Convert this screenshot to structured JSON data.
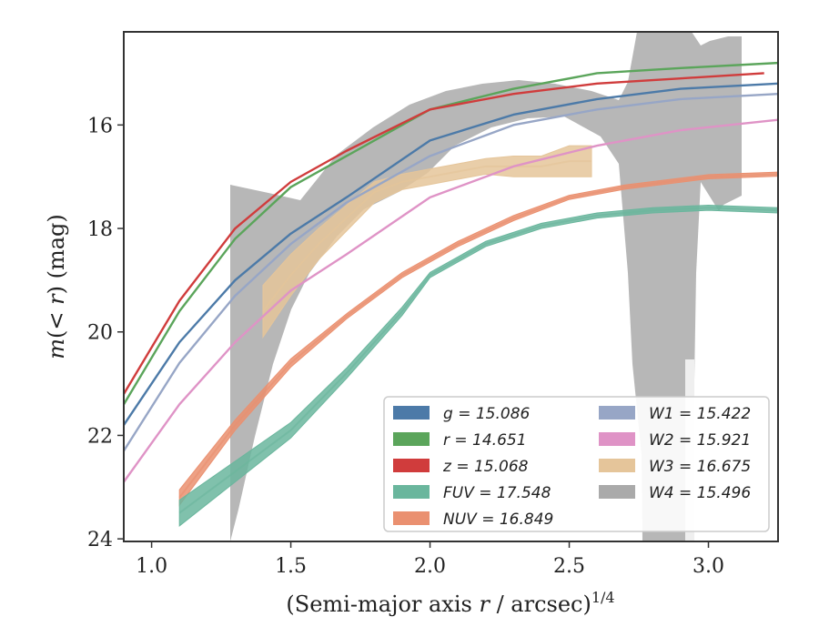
{
  "chart_data": {
    "type": "line",
    "xlabel": "(Semi-major axis r / arcsec)^{1/4}",
    "ylabel": "m(<r) (mag)",
    "xlim": [
      0.9,
      3.25
    ],
    "ylim": [
      24.05,
      14.2
    ],
    "y_inverted": true,
    "x_ticks": [
      "1.0",
      "1.5",
      "2.0",
      "2.5",
      "3.0"
    ],
    "x_tick_values": [
      1.0,
      1.5,
      2.0,
      2.5,
      3.0
    ],
    "y_ticks": [
      "16",
      "18",
      "20",
      "22",
      "24"
    ],
    "y_tick_values": [
      16,
      18,
      20,
      22,
      24
    ],
    "grid": false,
    "legend_position": "lower-right",
    "series": [
      {
        "name": "g = 15.086",
        "legend_label": "g = 15.086",
        "color": "#4c7aa8",
        "style": "line",
        "x": [
          0.9,
          1.1,
          1.3,
          1.5,
          1.7,
          2.0,
          2.3,
          2.6,
          2.9,
          3.25
        ],
        "y": [
          21.8,
          20.2,
          19.0,
          18.1,
          17.4,
          16.3,
          15.8,
          15.5,
          15.3,
          15.2
        ]
      },
      {
        "name": "r = 14.651",
        "legend_label": "r = 14.651",
        "color": "#5ba55b",
        "style": "line",
        "x": [
          0.9,
          1.1,
          1.3,
          1.5,
          1.7,
          2.0,
          2.3,
          2.6,
          2.9,
          3.25
        ],
        "y": [
          21.4,
          19.6,
          18.2,
          17.2,
          16.6,
          15.7,
          15.3,
          15.0,
          14.9,
          14.8
        ]
      },
      {
        "name": "z = 15.068",
        "legend_label": "z = 15.068",
        "color": "#d03c3c",
        "style": "line",
        "x": [
          0.9,
          1.1,
          1.3,
          1.5,
          1.7,
          2.0,
          2.3,
          2.6,
          2.9,
          3.2
        ],
        "y": [
          21.2,
          19.4,
          18.0,
          17.1,
          16.5,
          15.7,
          15.4,
          15.2,
          15.1,
          15.0
        ]
      },
      {
        "name": "FUV = 17.548",
        "legend_label": "FUV = 17.548",
        "color": "#6ab69d",
        "style": "band",
        "x": [
          1.1,
          1.3,
          1.5,
          1.7,
          1.9,
          2.0,
          2.2,
          2.4,
          2.6,
          2.8,
          3.0,
          3.25
        ],
        "y": [
          23.5,
          22.7,
          21.9,
          20.8,
          19.6,
          18.9,
          18.3,
          17.95,
          17.75,
          17.65,
          17.6,
          17.65
        ],
        "y_err": [
          0.25,
          0.2,
          0.15,
          0.1,
          0.08,
          0.05,
          0.05,
          0.05,
          0.05,
          0.05,
          0.05,
          0.05
        ]
      },
      {
        "name": "NUV = 16.849",
        "legend_label": "NUV = 16.849",
        "color": "#ea9070",
        "style": "band",
        "x": [
          1.1,
          1.3,
          1.5,
          1.7,
          1.9,
          2.1,
          2.3,
          2.5,
          2.7,
          3.0,
          3.25
        ],
        "y": [
          23.2,
          21.8,
          20.6,
          19.7,
          18.9,
          18.3,
          17.8,
          17.4,
          17.2,
          17.0,
          16.95
        ],
        "y_err": [
          0.15,
          0.1,
          0.08,
          0.05,
          0.05,
          0.05,
          0.05,
          0.04,
          0.04,
          0.04,
          0.04
        ]
      },
      {
        "name": "W1 = 15.422",
        "legend_label": "W1 = 15.422",
        "color": "#97a6c6",
        "style": "line",
        "x": [
          0.9,
          1.1,
          1.3,
          1.5,
          1.7,
          2.0,
          2.3,
          2.6,
          2.9,
          3.25
        ],
        "y": [
          22.3,
          20.6,
          19.3,
          18.3,
          17.5,
          16.6,
          16.0,
          15.7,
          15.5,
          15.4
        ]
      },
      {
        "name": "W2 = 15.921",
        "legend_label": "W2 = 15.921",
        "color": "#df93c6",
        "style": "line",
        "x": [
          0.9,
          1.1,
          1.3,
          1.5,
          1.7,
          2.0,
          2.3,
          2.6,
          2.9,
          3.25
        ],
        "y": [
          22.9,
          21.4,
          20.2,
          19.2,
          18.5,
          17.4,
          16.8,
          16.4,
          16.1,
          15.9
        ]
      },
      {
        "name": "W3 = 16.675",
        "legend_label": "W3 = 16.675",
        "color": "#e5c59a",
        "style": "band",
        "x": [
          1.4,
          1.5,
          1.6,
          1.7,
          1.8,
          1.9,
          2.0,
          2.1,
          2.2,
          2.3,
          2.4,
          2.5,
          2.58
        ],
        "y": [
          19.6,
          18.9,
          18.3,
          17.8,
          17.3,
          17.1,
          17.0,
          16.9,
          16.8,
          16.8,
          16.8,
          16.7,
          16.7
        ],
        "y_err": [
          0.5,
          0.4,
          0.3,
          0.25,
          0.2,
          0.15,
          0.15,
          0.15,
          0.15,
          0.2,
          0.2,
          0.3,
          0.3
        ]
      },
      {
        "name": "W4 = 15.496",
        "legend_label": "W4 = 15.496",
        "color": "#aaaaaa",
        "style": "band"
      }
    ]
  }
}
